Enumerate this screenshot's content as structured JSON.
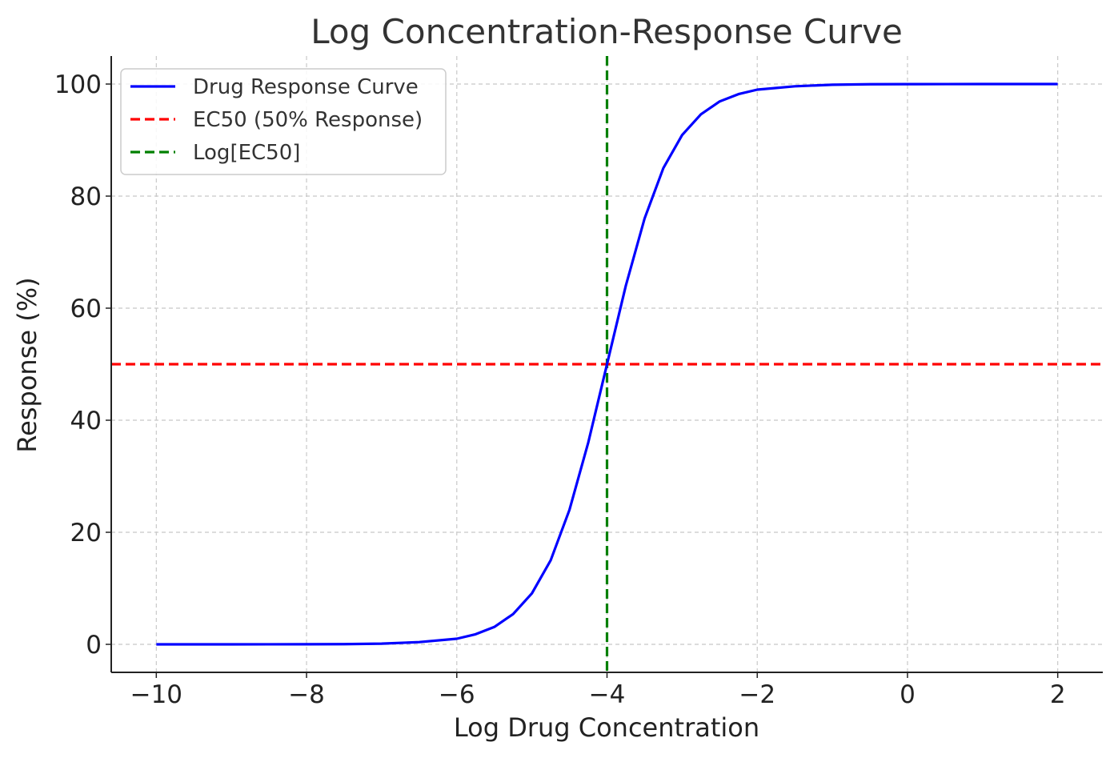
{
  "chart_data": {
    "type": "line",
    "title": "Log Concentration-Response Curve",
    "xlabel": "Log Drug Concentration",
    "ylabel": "Response (%)",
    "xlim": [
      -10.6,
      2.6
    ],
    "ylim": [
      -5,
      105
    ],
    "xticks": [
      -10,
      -8,
      -6,
      -4,
      -2,
      0,
      2
    ],
    "xtick_labels": [
      "−10",
      "−8",
      "−6",
      "−4",
      "−2",
      "0",
      "2"
    ],
    "yticks": [
      0,
      20,
      40,
      60,
      80,
      100
    ],
    "ytick_labels": [
      "0",
      "20",
      "40",
      "60",
      "80",
      "100"
    ],
    "grid": true,
    "legend_position": "top-left",
    "series": [
      {
        "name": "Drug Response Curve",
        "color": "#0000ff",
        "style": "solid",
        "x": [
          -10,
          -9.5,
          -9,
          -8.5,
          -8,
          -7.5,
          -7,
          -6.5,
          -6,
          -5.75,
          -5.5,
          -5.25,
          -5,
          -4.75,
          -4.5,
          -4.25,
          -4,
          -3.75,
          -3.5,
          -3.25,
          -3,
          -2.75,
          -2.5,
          -2.25,
          -2,
          -1.5,
          -1,
          -0.5,
          0,
          0.5,
          1,
          1.5,
          2
        ],
        "y": [
          0.0,
          0.0,
          0.0,
          0.01,
          0.02,
          0.04,
          0.12,
          0.4,
          1.0,
          1.8,
          3.1,
          5.4,
          9.1,
          15.0,
          24.0,
          36.0,
          50.0,
          64.0,
          76.0,
          85.0,
          90.9,
          94.6,
          96.9,
          98.2,
          99.0,
          99.6,
          99.88,
          99.96,
          99.98,
          99.99,
          100,
          100,
          100
        ]
      }
    ],
    "reference_lines": [
      {
        "name": "EC50 (50% Response)",
        "orientation": "horizontal",
        "value": 50,
        "color": "#ff0000",
        "style": "dashed"
      },
      {
        "name": "Log[EC50]",
        "orientation": "vertical",
        "value": -4,
        "color": "#008000",
        "style": "dashed"
      }
    ]
  }
}
